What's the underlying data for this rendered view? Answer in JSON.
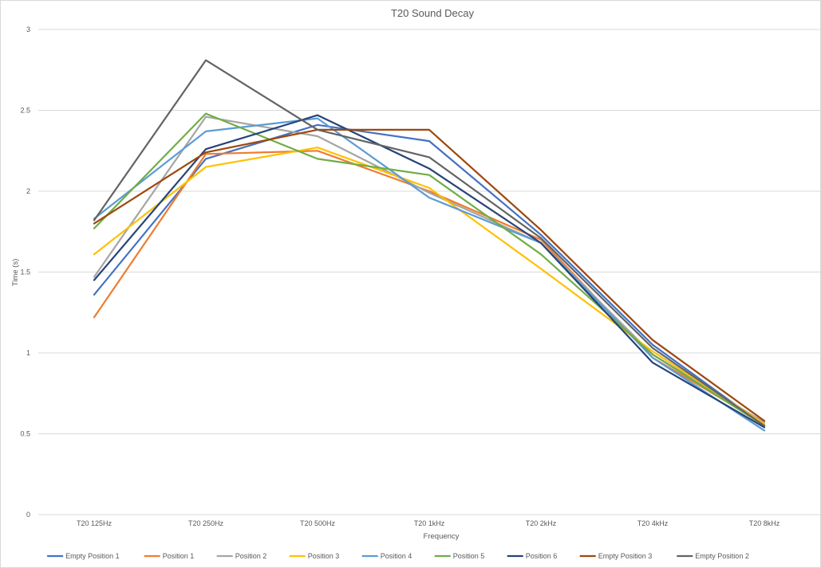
{
  "chart_data": {
    "type": "line",
    "title": "T20 Sound Decay",
    "xlabel": "Frequency",
    "ylabel": "Time (s)",
    "ylim": [
      0,
      3
    ],
    "yticks": [
      "0",
      "0.5",
      "1",
      "1.5",
      "2",
      "2.5",
      "3"
    ],
    "grid": true,
    "legend_position": "bottom",
    "categories": [
      "T20 125Hz",
      "T20 250Hz",
      "T20 500Hz",
      "T20 1kHz",
      "T20 2kHz",
      "T20 4kHz",
      "T20 8kHz"
    ],
    "series": [
      {
        "name": "Empty Position 1",
        "color": "#4472c4",
        "values": [
          1.36,
          2.2,
          2.41,
          2.31,
          1.73,
          1.05,
          0.55
        ]
      },
      {
        "name": "Position 1",
        "color": "#ed7d31",
        "values": [
          1.22,
          2.23,
          2.25,
          2.0,
          1.7,
          0.97,
          0.56
        ]
      },
      {
        "name": "Position 2",
        "color": "#a5a5a5",
        "values": [
          1.47,
          2.46,
          2.34,
          1.99,
          1.68,
          0.99,
          0.57
        ]
      },
      {
        "name": "Position 3",
        "color": "#ffc000",
        "values": [
          1.61,
          2.15,
          2.27,
          2.02,
          1.52,
          1.01,
          0.56
        ]
      },
      {
        "name": "Position 4",
        "color": "#5b9bd5",
        "values": [
          1.83,
          2.37,
          2.45,
          1.96,
          1.68,
          0.97,
          0.52
        ]
      },
      {
        "name": "Position 5",
        "color": "#70ad47",
        "values": [
          1.77,
          2.48,
          2.2,
          2.1,
          1.61,
          0.99,
          0.55
        ]
      },
      {
        "name": "Position 6",
        "color": "#264478",
        "values": [
          1.45,
          2.26,
          2.47,
          2.14,
          1.68,
          0.94,
          0.54
        ]
      },
      {
        "name": "Empty Position 3",
        "color": "#9e480e",
        "values": [
          1.8,
          2.24,
          2.38,
          2.38,
          1.76,
          1.08,
          0.58
        ]
      },
      {
        "name": "Empty Position 2",
        "color": "#636363",
        "values": [
          1.82,
          2.81,
          2.38,
          2.21,
          1.71,
          1.03,
          0.55
        ]
      }
    ]
  }
}
